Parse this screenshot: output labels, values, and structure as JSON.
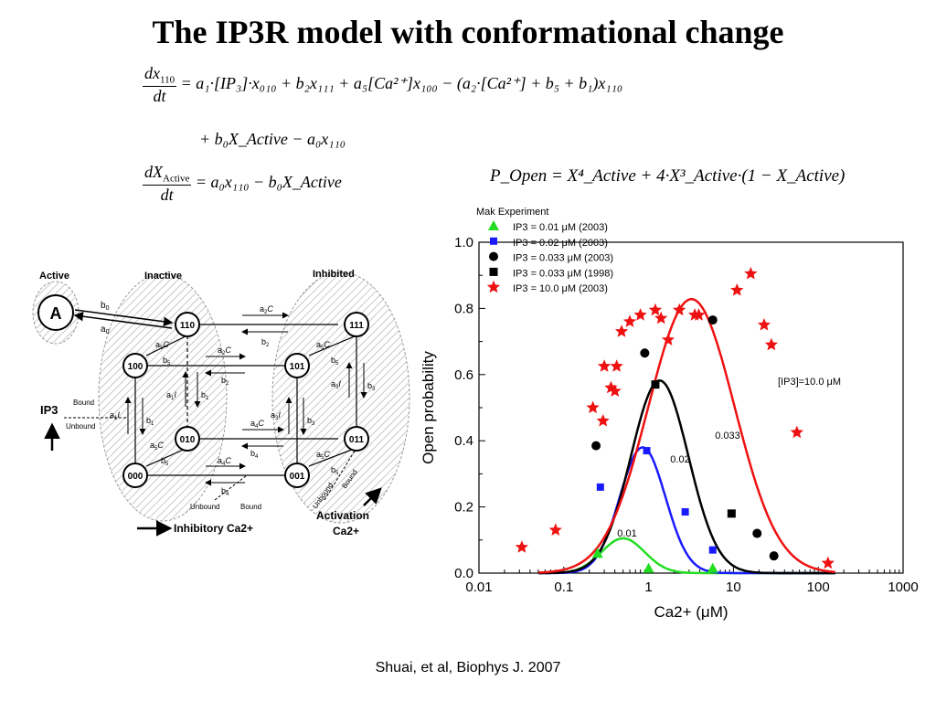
{
  "title": "The IP3R model with conformational change",
  "equations": {
    "eq1_lhs_num": "dx",
    "eq1_lhs_num_sub": "110",
    "eq1_lhs_den": "dt",
    "eq1_rhs_line1": "= a₁·[IP₃]·x₀₁₀ + b₂x₁₁₁ + a₅[Ca²⁺]x₁₀₀ − (a₂·[Ca²⁺] + b₅ + b₁)x₁₁₀",
    "eq1_rhs_line2": "+ b₀X_Active − a₀x₁₁₀",
    "eq2_lhs_num": "dX",
    "eq2_lhs_num_sub": "Active",
    "eq2_lhs_den": "dt",
    "eq2_rhs": "= a₀x₁₁₀ − b₀X_Active",
    "eq3": "P_Open = X⁴_Active + 4·X³_Active·(1 − X_Active)"
  },
  "diagram": {
    "region_active": "Active",
    "region_inactive": "Inactive",
    "region_inhibited": "Inhibited",
    "state_a": "A",
    "states": [
      "110",
      "100",
      "010",
      "000",
      "111",
      "101",
      "011",
      "001"
    ],
    "rate_b0": "b",
    "rate_b0_sub": "0",
    "rate_a0": "a",
    "rate_a0_sub": "0",
    "ip3_label": "IP3",
    "bound": "Bound",
    "unbound": "Unbound",
    "inhibitory_label": "Inhibitory Ca2+",
    "activation_label_1": "Activation",
    "activation_label_2": "Ca2+",
    "inhib_unbound": "Unbound",
    "inhib_bound": "Bound",
    "act_unbound": "Unbound",
    "act_bound": "Bound"
  },
  "chart_data": {
    "type": "scatter",
    "xlabel": "Ca2+  (μM)",
    "ylabel": "Open probability",
    "xscale": "log",
    "xlim": [
      0.01,
      1000
    ],
    "ylim": [
      0.0,
      1.0
    ],
    "xticks": [
      "0.01",
      "0.1",
      "1",
      "10",
      "100",
      "1000"
    ],
    "yticks": [
      "0.0",
      "0.2",
      "0.4",
      "0.6",
      "0.8",
      "1.0"
    ],
    "legend_title": "Mak Experiment",
    "legend_placement": "top-left",
    "series": [
      {
        "name": "IP3 = 0.01 μM (2003)",
        "color": "#22dd22",
        "marker": "triangle",
        "x": [
          0.25,
          1.0,
          5.7
        ],
        "y": [
          0.06,
          0.015,
          0.015
        ]
      },
      {
        "name": "IP3 = 0.02 μM (2003)",
        "color": "#1a1aff",
        "marker": "square-small",
        "x": [
          0.27,
          0.95,
          2.7,
          5.7
        ],
        "y": [
          0.26,
          0.37,
          0.185,
          0.07
        ]
      },
      {
        "name": "IP3 = 0.033 μM (2003)",
        "color": "#000000",
        "marker": "circle",
        "x": [
          0.24,
          0.9,
          5.7,
          19.0,
          30.0
        ],
        "y": [
          0.385,
          0.665,
          0.765,
          0.12,
          0.052
        ]
      },
      {
        "name": "IP3 = 0.033 μM (1998)",
        "color": "#000000",
        "marker": "square",
        "x": [
          1.2,
          9.5
        ],
        "y": [
          0.57,
          0.18
        ]
      },
      {
        "name": "IP3 = 10.0 μM (2003)",
        "color": "#ee1111",
        "marker": "star",
        "x": [
          0.032,
          0.08,
          0.22,
          0.29,
          0.3,
          0.36,
          0.4,
          0.42,
          0.48,
          0.6,
          0.8,
          1.2,
          1.4,
          1.7,
          2.3,
          3.5,
          3.9,
          11.0,
          16.0,
          23.0,
          28.0,
          56.0,
          130.0
        ],
        "y": [
          0.078,
          0.13,
          0.5,
          0.46,
          0.625,
          0.56,
          0.55,
          0.625,
          0.73,
          0.76,
          0.78,
          0.795,
          0.77,
          0.705,
          0.795,
          0.78,
          0.78,
          0.855,
          0.905,
          0.75,
          0.69,
          0.425,
          0.03
        ]
      }
    ],
    "curves": [
      {
        "name": "0.01",
        "color": "#22dd22",
        "peak": 0.105,
        "center": 0.5,
        "width": 0.36
      },
      {
        "name": "0.02",
        "color": "#1a1aff",
        "peak": 0.38,
        "center": 0.85,
        "width": 0.38
      },
      {
        "name": "0.033",
        "color": "#000000",
        "peak": 0.582,
        "center": 1.35,
        "width": 0.48
      },
      {
        "name": "[IP3]=10.0 μM",
        "color": "#ee1111",
        "peak": 0.828,
        "center": 3.2,
        "width": 0.72
      }
    ],
    "curve_labels": [
      "0.01",
      "0.02",
      "0.033",
      "[IP3]=10.0 μM"
    ]
  },
  "citation": "Shuai, et al, Biophys J. 2007"
}
